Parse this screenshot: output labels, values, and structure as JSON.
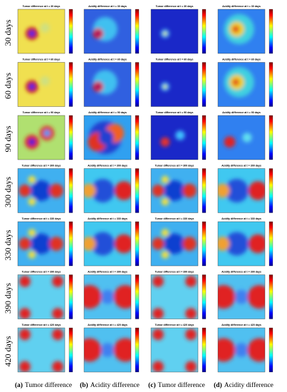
{
  "rows": [
    {
      "label": "30 days",
      "panels": [
        "Tumor difference at t = 30 days",
        "Acidity difference at t = 30 days",
        "Tumor difference at t = 30 days",
        "Acidity difference at t = 30 days"
      ]
    },
    {
      "label": "60 days",
      "panels": [
        "Tumor difference at t = 60 days",
        "Acidity difference at t = 60 days",
        "Tumor difference at t = 60 days",
        "Acidity difference at t = 60 days"
      ]
    },
    {
      "label": "90 days",
      "panels": [
        "Tumor difference at t = 90 days",
        "Acidity difference at t = 90 days",
        "Tumor difference at t = 90 days",
        "Acidity difference at t = 90 days"
      ]
    },
    {
      "label": "300 days",
      "panels": [
        "Tumor difference at t = 300 days",
        "Acidity difference at t = 300 days",
        "Tumor difference at t = 300 days",
        "Acidity difference at t = 300 days"
      ]
    },
    {
      "label": "330 days",
      "panels": [
        "Tumor difference at t = 330 days",
        "Acidity difference at t = 330 days",
        "Tumor difference at t = 330 days",
        "Acidity difference at t = 330 days"
      ]
    },
    {
      "label": "390 days",
      "panels": [
        "Tumor difference at t = 390 days",
        "Acidity difference at t = 390 days",
        "Tumor difference at t = 390 days",
        "Acidity difference at t = 390 days"
      ]
    },
    {
      "label": "420 days",
      "panels": [
        "Tumor difference at t = 420 days",
        "Acidity difference at t = 420 days",
        "Tumor difference at t = 420 days",
        "Acidity difference at t = 420 days"
      ]
    }
  ],
  "captions": [
    {
      "tag": "(a)",
      "text": "Tumor difference"
    },
    {
      "tag": "(b)",
      "text": "Acidity difference"
    },
    {
      "tag": "(c)",
      "text": "Tumor difference"
    },
    {
      "tag": "(d)",
      "text": "Acidity difference"
    }
  ]
}
